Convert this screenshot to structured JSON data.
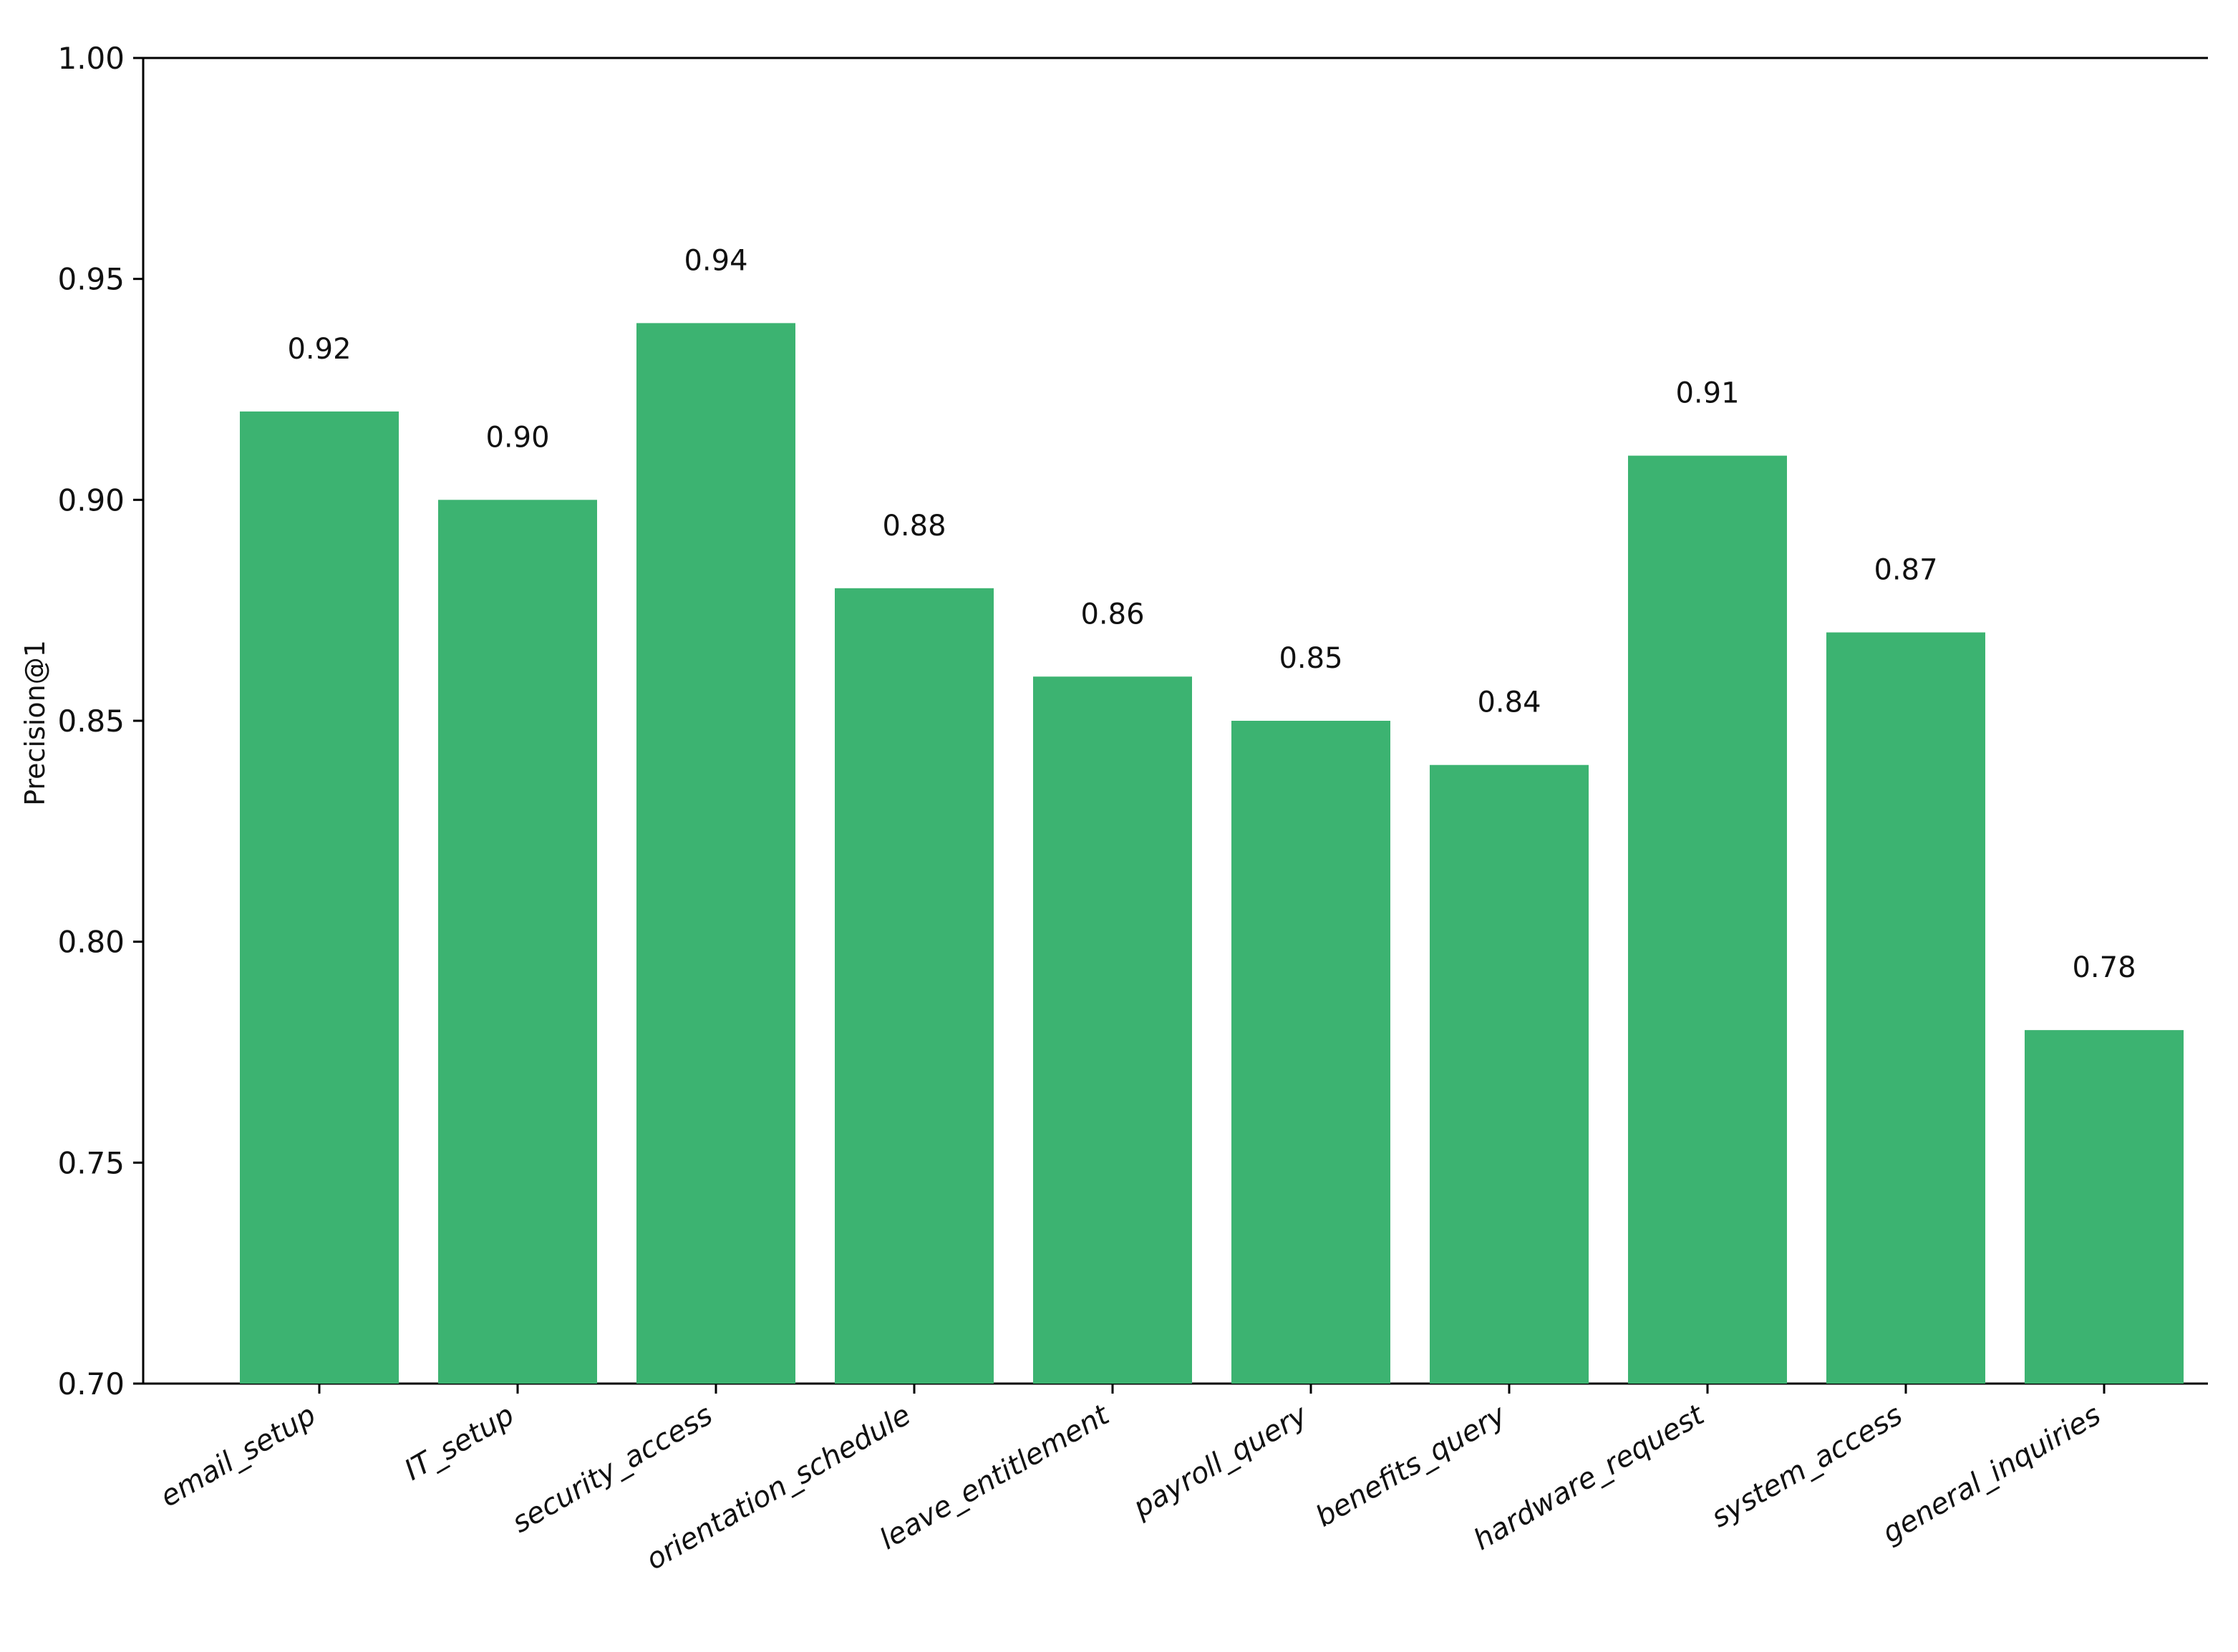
{
  "chart_data": {
    "type": "bar",
    "categories": [
      "email_setup",
      "IT_setup",
      "security_access",
      "orientation_schedule",
      "leave_entitlement",
      "payroll_query",
      "benefits_query",
      "hardware_request",
      "system_access",
      "general_inquiries"
    ],
    "values": [
      0.92,
      0.9,
      0.94,
      0.88,
      0.86,
      0.85,
      0.84,
      0.91,
      0.87,
      0.78
    ],
    "value_labels": [
      "0.92",
      "0.90",
      "0.94",
      "0.88",
      "0.86",
      "0.85",
      "0.84",
      "0.91",
      "0.87",
      "0.78"
    ],
    "title": "",
    "xlabel": "",
    "ylabel": "Precision@1",
    "ylim": [
      0.7,
      1.0
    ],
    "yticks": [
      "0.70",
      "0.75",
      "0.80",
      "0.85",
      "0.90",
      "0.95",
      "1.00"
    ],
    "bar_color": "#3cb371",
    "grid": false,
    "legend": "none"
  }
}
